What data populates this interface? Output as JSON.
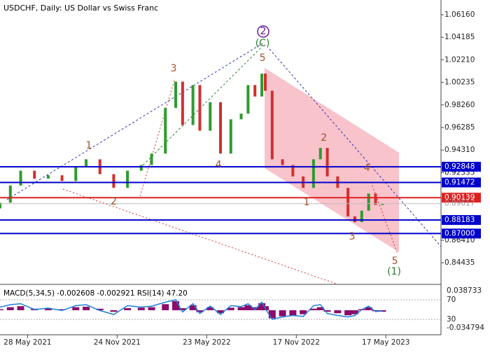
{
  "chart_data": {
    "type": "candlestick",
    "title": "USDCHF, Daily:  US Dollar vs Swiss Franc",
    "x": [
      0,
      3,
      6,
      10,
      14,
      18,
      22,
      25,
      29,
      33,
      37,
      41,
      44,
      48,
      51,
      53,
      56,
      58,
      61,
      64,
      67,
      70,
      72,
      74,
      76,
      77,
      79,
      82,
      85,
      88,
      91,
      93,
      95,
      98,
      101,
      103,
      105,
      107,
      109,
      111
    ],
    "open": [
      0.892,
      0.897,
      0.912,
      0.925,
      0.918,
      0.921,
      0.916,
      0.928,
      0.935,
      0.922,
      0.91,
      0.925,
      0.93,
      0.94,
      0.98,
      1.003,
      0.965,
      1.0,
      0.96,
      0.985,
      0.94,
      0.97,
      0.975,
      1.0,
      0.99,
      1.01,
      0.995,
      0.935,
      0.93,
      0.92,
      0.91,
      0.935,
      0.945,
      0.92,
      0.91,
      0.885,
      0.88,
      0.89,
      0.905,
      0.895
    ],
    "close": [
      0.897,
      0.912,
      0.925,
      0.918,
      0.921,
      0.916,
      0.928,
      0.935,
      0.922,
      0.91,
      0.925,
      0.93,
      0.94,
      0.98,
      1.003,
      0.965,
      1.0,
      0.96,
      0.985,
      0.94,
      0.97,
      0.975,
      1.0,
      0.99,
      1.01,
      0.995,
      0.935,
      0.93,
      0.92,
      0.91,
      0.935,
      0.945,
      0.92,
      0.91,
      0.885,
      0.88,
      0.89,
      0.905,
      0.895,
      0.896
    ],
    "up_color": "#2e9b2e",
    "down_color": "#d03030",
    "xlim": [
      0,
      128
    ],
    "xticks": [
      {
        "value": 8,
        "label": "28 May 2021"
      },
      {
        "value": 34,
        "label": "24 Nov 2021"
      },
      {
        "value": 60,
        "label": "23 May 2022"
      },
      {
        "value": 86,
        "label": "17 Nov 2022"
      },
      {
        "value": 112,
        "label": "17 May 2023"
      }
    ],
    "ylim": [
      0.8261,
      1.07448
    ],
    "yticks": [
      {
        "value": 1.0616,
        "label": "1.06160"
      },
      {
        "value": 1.04185,
        "label": "1.04185"
      },
      {
        "value": 1.0221,
        "label": "1.02210"
      },
      {
        "value": 1.00235,
        "label": "1.00235"
      },
      {
        "value": 0.9826,
        "label": "0.98260"
      },
      {
        "value": 0.96285,
        "label": "0.96285"
      },
      {
        "value": 0.9431,
        "label": "0.94310"
      },
      {
        "value": 0.92335,
        "label": "0.92335"
      },
      {
        "value": 0.8641,
        "label": "0.86410"
      },
      {
        "value": 0.84435,
        "label": "0.84435"
      }
    ],
    "current_price": {
      "value": 0.89617,
      "label": "0.89617"
    },
    "levels": [
      {
        "value": 0.92848,
        "label": "0.92848",
        "color": "#0000cc"
      },
      {
        "value": 0.91472,
        "label": "0.91472",
        "color": "#0000cc"
      },
      {
        "value": 0.90139,
        "label": "0.90139",
        "color": "#dd2222"
      },
      {
        "value": 0.88183,
        "label": "0.88183",
        "color": "#0000cc"
      },
      {
        "value": 0.87,
        "label": "0.87000",
        "color": "#0000cc"
      }
    ],
    "annotations": [
      {
        "text": "1",
        "x": 25.8,
        "y": 0.9469,
        "color": "#a0522d"
      },
      {
        "text": "2",
        "x": 33,
        "y": 0.8978,
        "color": "#a0522d"
      },
      {
        "text": "3",
        "x": 50.4,
        "y": 1.0144,
        "color": "#a0522d"
      },
      {
        "text": "4",
        "x": 63.4,
        "y": 0.93,
        "color": "#a0522d"
      },
      {
        "text": "5",
        "x": 76.2,
        "y": 1.0236,
        "color": "#a0522d"
      },
      {
        "text": "2",
        "x": 76.4,
        "y": 1.0469,
        "color": "#6a1b9a"
      },
      {
        "text": "(C)",
        "x": 76.2,
        "y": 1.0365,
        "color": "#2e7d32"
      },
      {
        "text": "1",
        "x": 89,
        "y": 0.8972,
        "color": "#a0522d"
      },
      {
        "text": "2",
        "x": 94,
        "y": 0.9536,
        "color": "#a0522d"
      },
      {
        "text": "3",
        "x": 102.2,
        "y": 0.8671,
        "color": "#a0522d"
      },
      {
        "text": "4",
        "x": 106.5,
        "y": 0.9272,
        "color": "#a0522d"
      },
      {
        "text": "5",
        "x": 114.6,
        "y": 0.8456,
        "color": "#a0522d"
      },
      {
        "text": "(1)",
        "x": 114.4,
        "y": 0.8364,
        "color": "#2e7d32"
      }
    ],
    "indicator": {
      "title": "MACD(5,34,5) -0.002608 -0.002921 RSI(14) 47.20",
      "macd": [
        0.002,
        0.006,
        0.008,
        0.003,
        0.004,
        0.002,
        0.006,
        0.007,
        0.003,
        -0.003,
        0.004,
        0.005,
        0.006,
        0.012,
        0.018,
        0.004,
        0.01,
        -0.004,
        0.006,
        -0.006,
        0.005,
        0.006,
        0.01,
        0.006,
        0.014,
        0.008,
        -0.016,
        -0.012,
        -0.01,
        -0.008,
        0.003,
        0.006,
        -0.003,
        -0.006,
        -0.01,
        -0.008,
        0.002,
        0.006,
        -0.002,
        -0.003
      ],
      "macd_color": "#8b0a6b",
      "ylim": [
        -0.034794,
        0.038733
      ],
      "yticks": [
        {
          "value": 0.038733,
          "label": "0.038733"
        },
        {
          "value": -0.034794,
          "label": "-0.034794"
        }
      ],
      "rsi": [
        55,
        60,
        62,
        50,
        53,
        48,
        58,
        60,
        48,
        40,
        58,
        55,
        57,
        65,
        70,
        45,
        62,
        42,
        57,
        40,
        58,
        56,
        62,
        50,
        65,
        52,
        30,
        35,
        38,
        36,
        58,
        60,
        42,
        38,
        35,
        38,
        50,
        57,
        46,
        47.2
      ],
      "rsi_color": "#1e7fd8",
      "rsi_lim": [
        0,
        100
      ],
      "rsi_levels": [
        70,
        30
      ]
    }
  }
}
